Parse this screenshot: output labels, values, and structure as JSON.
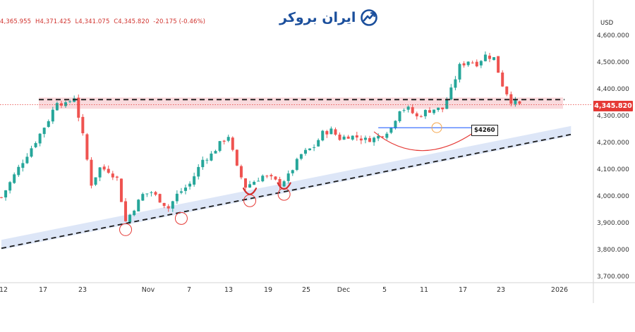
{
  "ohlc_readout": {
    "open": "4,365.955",
    "high": "H4,371.425",
    "low": "L4,341.075",
    "close": "C4,345.820",
    "change": "-20.175 (-0.46%)"
  },
  "logo": {
    "text": "ایران بروکر",
    "icon": "bull-chart-icon"
  },
  "price_badge": "4,345.820",
  "level_label": "$4260",
  "colors": {
    "bull": "#26a69a",
    "bear": "#ef5350",
    "badge": "#e53935",
    "resistance_zone": "#fadadd",
    "support_band": "#dde6f7",
    "trend_line": "#1a1a1a",
    "breakout_line": "#2962ff",
    "circle": "#e53935"
  },
  "chart_data": {
    "type": "candlestick",
    "currency": "USD",
    "yticks": [
      "4,600.000",
      "4,500.000",
      "4,400.000",
      "4,300.000",
      "4,200.000",
      "4,100.000",
      "4,000.000",
      "3,900.000",
      "3,800.000",
      "3,700.000"
    ],
    "xticks": [
      "12",
      "17",
      "23",
      "Nov",
      "7",
      "13",
      "19",
      "25",
      "Dec",
      "5",
      "11",
      "17",
      "23",
      "2026"
    ],
    "ylim": [
      3700,
      4620
    ],
    "last_price": 4345.82,
    "resistance_level": 4365,
    "breakout_level": 4260,
    "support_trend": [
      [
        0,
        3810
      ],
      [
        133,
        4235
      ]
    ],
    "close_path": [
      [
        0,
        4000
      ],
      [
        4,
        4110
      ],
      [
        8,
        4210
      ],
      [
        11,
        4290
      ],
      [
        13,
        4360
      ],
      [
        15,
        4345
      ],
      [
        17,
        4375
      ],
      [
        19,
        4230
      ],
      [
        21,
        4050
      ],
      [
        23,
        4110
      ],
      [
        25,
        4100
      ],
      [
        27,
        4070
      ],
      [
        29,
        3910
      ],
      [
        31,
        3960
      ],
      [
        33,
        4010
      ],
      [
        35,
        4020
      ],
      [
        37,
        3990
      ],
      [
        39,
        3960
      ],
      [
        41,
        4010
      ],
      [
        44,
        4050
      ],
      [
        47,
        4140
      ],
      [
        49,
        4160
      ],
      [
        51,
        4200
      ],
      [
        53,
        4230
      ],
      [
        55,
        4110
      ],
      [
        57,
        4040
      ],
      [
        59,
        4060
      ],
      [
        61,
        4080
      ],
      [
        63,
        4070
      ],
      [
        65,
        4050
      ],
      [
        67,
        4080
      ],
      [
        70,
        4160
      ],
      [
        73,
        4190
      ],
      [
        75,
        4240
      ],
      [
        77,
        4250
      ],
      [
        79,
        4220
      ],
      [
        81,
        4230
      ],
      [
        83,
        4225
      ],
      [
        85,
        4215
      ],
      [
        87,
        4220
      ],
      [
        89,
        4235
      ],
      [
        91,
        4260
      ],
      [
        93,
        4330
      ],
      [
        95,
        4330
      ],
      [
        97,
        4300
      ],
      [
        99,
        4320
      ],
      [
        101,
        4330
      ],
      [
        103,
        4330
      ],
      [
        105,
        4400
      ],
      [
        107,
        4490
      ],
      [
        109,
        4510
      ],
      [
        111,
        4500
      ],
      [
        113,
        4530
      ],
      [
        115,
        4520
      ],
      [
        117,
        4420
      ],
      [
        119,
        4360
      ],
      [
        121,
        4345
      ]
    ],
    "circled_lows": [
      [
        29,
        3890
      ],
      [
        42,
        3932
      ],
      [
        58,
        3998
      ],
      [
        66,
        4022
      ]
    ],
    "circled_breakout": [
      [
        101,
        4255
      ]
    ],
    "cup_base": [
      [
        87,
        4245
      ],
      [
        98,
        4165
      ],
      [
        111,
        4250
      ]
    ]
  }
}
